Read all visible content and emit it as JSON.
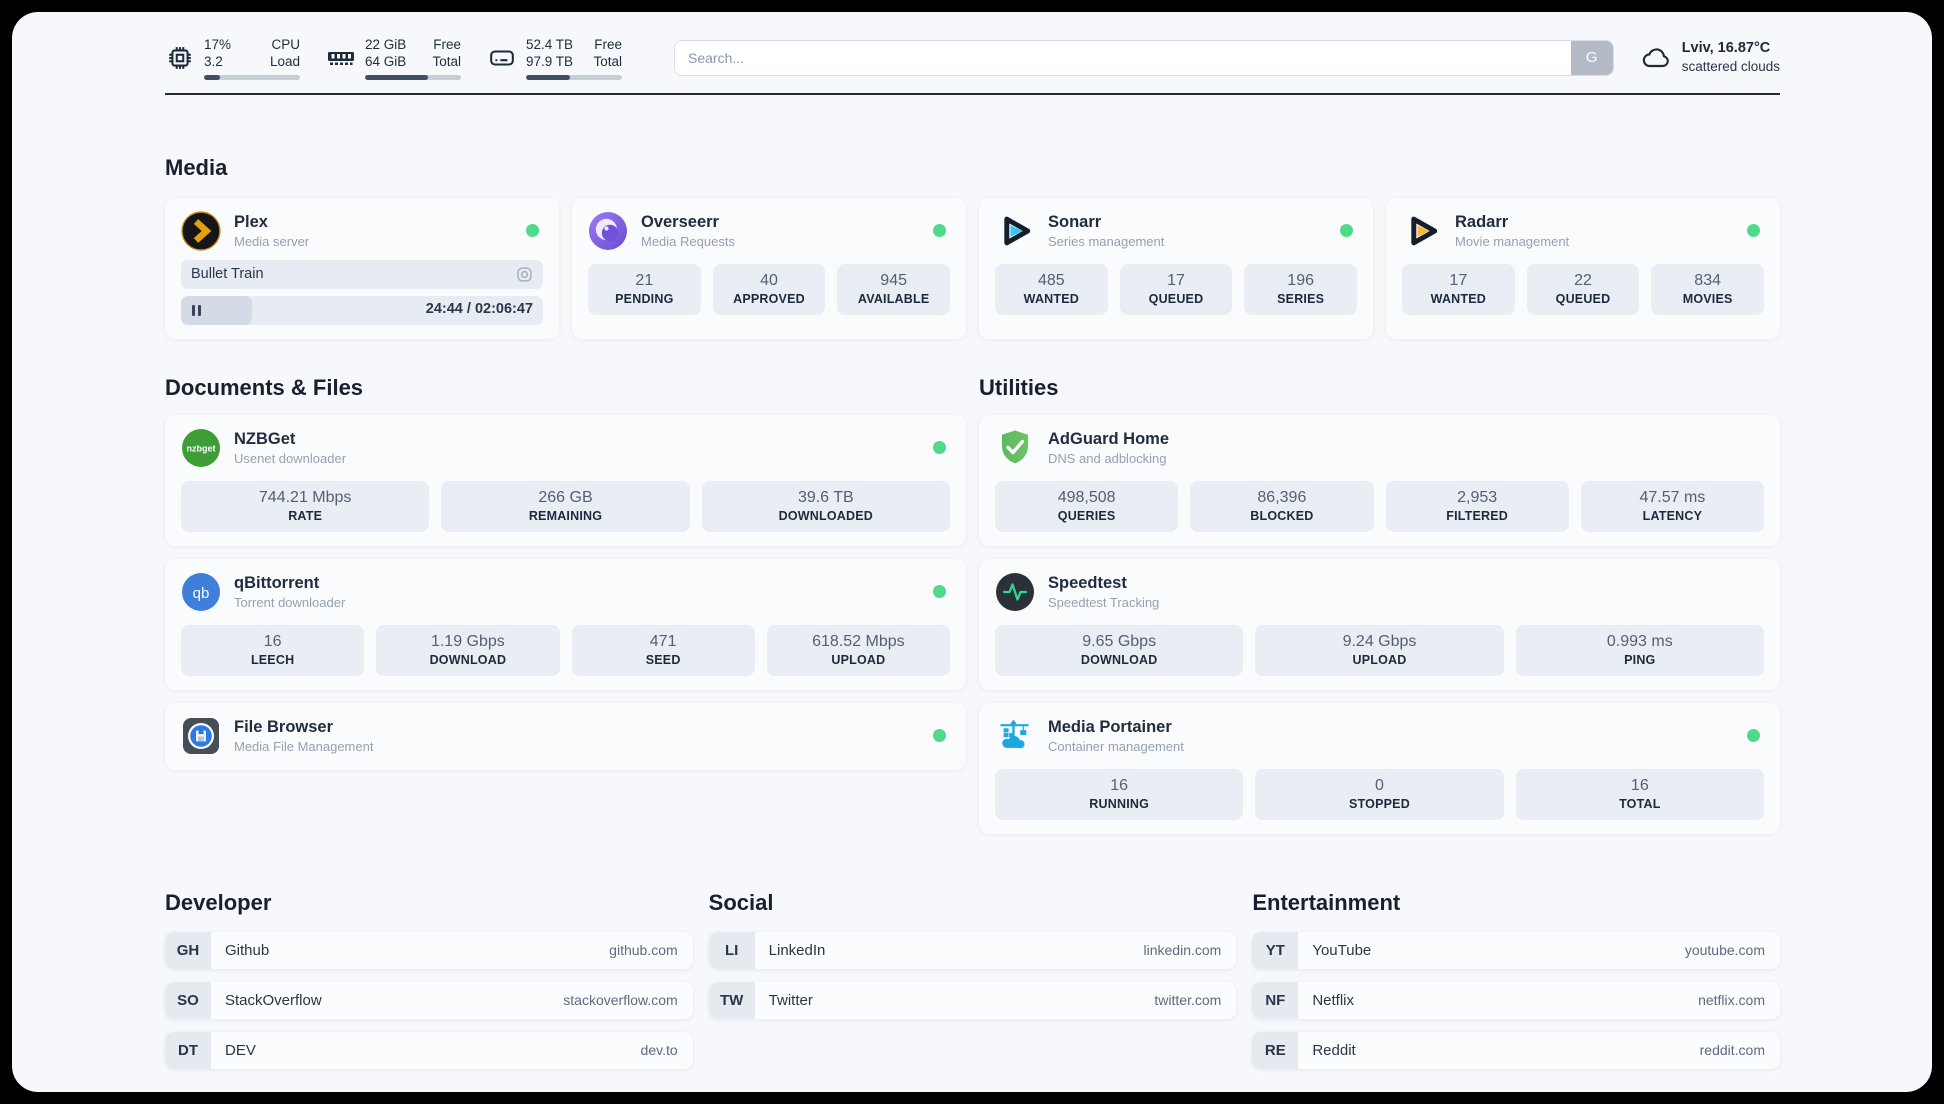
{
  "header": {
    "metrics": [
      {
        "icon": "cpu-icon",
        "rows": [
          [
            "17%",
            "CPU"
          ],
          [
            "3.2",
            "Load"
          ]
        ],
        "progress": 17
      },
      {
        "icon": "ram-icon",
        "rows": [
          [
            "22 GiB",
            "Free"
          ],
          [
            "64 GiB",
            "Total"
          ]
        ],
        "progress": 66
      },
      {
        "icon": "disk-icon",
        "rows": [
          [
            "52.4 TB",
            "Free"
          ],
          [
            "97.9 TB",
            "Total"
          ]
        ],
        "progress": 46
      }
    ],
    "search": {
      "placeholder": "Search...",
      "button_label": "G"
    },
    "weather": {
      "location": "Lviv, 16.87°C",
      "condition": "scattered clouds"
    }
  },
  "sections": {
    "media": "Media",
    "documents": "Documents & Files",
    "utilities": "Utilities",
    "developer": "Developer",
    "social": "Social",
    "entertainment": "Entertainment"
  },
  "apps": {
    "plex": {
      "name": "Plex",
      "subtitle": "Media server",
      "now_playing": {
        "title": "Bullet Train",
        "time": "24:44 / 02:06:47",
        "progress": 19.5
      }
    },
    "overseerr": {
      "name": "Overseerr",
      "subtitle": "Media Requests",
      "stats": [
        {
          "value": "21",
          "label": "PENDING"
        },
        {
          "value": "40",
          "label": "APPROVED"
        },
        {
          "value": "945",
          "label": "AVAILABLE"
        }
      ]
    },
    "sonarr": {
      "name": "Sonarr",
      "subtitle": "Series management",
      "stats": [
        {
          "value": "485",
          "label": "WANTED"
        },
        {
          "value": "17",
          "label": "QUEUED"
        },
        {
          "value": "196",
          "label": "SERIES"
        }
      ]
    },
    "radarr": {
      "name": "Radarr",
      "subtitle": "Movie management",
      "stats": [
        {
          "value": "17",
          "label": "WANTED"
        },
        {
          "value": "22",
          "label": "QUEUED"
        },
        {
          "value": "834",
          "label": "MOVIES"
        }
      ]
    },
    "nzbget": {
      "name": "NZBGet",
      "subtitle": "Usenet downloader",
      "logo_text": "nzbget",
      "stats": [
        {
          "value": "744.21 Mbps",
          "label": "RATE"
        },
        {
          "value": "266 GB",
          "label": "REMAINING"
        },
        {
          "value": "39.6 TB",
          "label": "DOWNLOADED"
        }
      ]
    },
    "qbittorrent": {
      "name": "qBittorrent",
      "subtitle": "Torrent downloader",
      "logo_text": "qb",
      "stats": [
        {
          "value": "16",
          "label": "LEECH"
        },
        {
          "value": "1.19 Gbps",
          "label": "DOWNLOAD"
        },
        {
          "value": "471",
          "label": "SEED"
        },
        {
          "value": "618.52 Mbps",
          "label": "UPLOAD"
        }
      ]
    },
    "filebrowser": {
      "name": "File Browser",
      "subtitle": "Media File Management"
    },
    "adguard": {
      "name": "AdGuard Home",
      "subtitle": "DNS and adblocking",
      "stats": [
        {
          "value": "498,508",
          "label": "QUERIES"
        },
        {
          "value": "86,396",
          "label": "BLOCKED"
        },
        {
          "value": "2,953",
          "label": "FILTERED"
        },
        {
          "value": "47.57 ms",
          "label": "LATENCY"
        }
      ]
    },
    "speedtest": {
      "name": "Speedtest",
      "subtitle": "Speedtest Tracking",
      "stats": [
        {
          "value": "9.65 Gbps",
          "label": "DOWNLOAD"
        },
        {
          "value": "9.24 Gbps",
          "label": "UPLOAD"
        },
        {
          "value": "0.993 ms",
          "label": "PING"
        }
      ]
    },
    "portainer": {
      "name": "Media Portainer",
      "subtitle": "Container management",
      "stats": [
        {
          "value": "16",
          "label": "RUNNING"
        },
        {
          "value": "0",
          "label": "STOPPED"
        },
        {
          "value": "16",
          "label": "TOTAL"
        }
      ]
    }
  },
  "links": {
    "developer": [
      {
        "badge": "GH",
        "name": "Github",
        "domain": "github.com"
      },
      {
        "badge": "SO",
        "name": "StackOverflow",
        "domain": "stackoverflow.com"
      },
      {
        "badge": "DT",
        "name": "DEV",
        "domain": "dev.to"
      }
    ],
    "social": [
      {
        "badge": "LI",
        "name": "LinkedIn",
        "domain": "linkedin.com"
      },
      {
        "badge": "TW",
        "name": "Twitter",
        "domain": "twitter.com"
      }
    ],
    "entertainment": [
      {
        "badge": "YT",
        "name": "YouTube",
        "domain": "youtube.com"
      },
      {
        "badge": "NF",
        "name": "Netflix",
        "domain": "netflix.com"
      },
      {
        "badge": "RE",
        "name": "Reddit",
        "domain": "reddit.com"
      }
    ]
  },
  "colors": {
    "status_green": "#4fd98a",
    "plex_gold": "#e5a00d",
    "sonarr_blue": "#35c5f4",
    "radarr_yellow": "#ffb53c",
    "adguard_green": "#55b154",
    "portainer_blue": "#1ba8e0"
  }
}
